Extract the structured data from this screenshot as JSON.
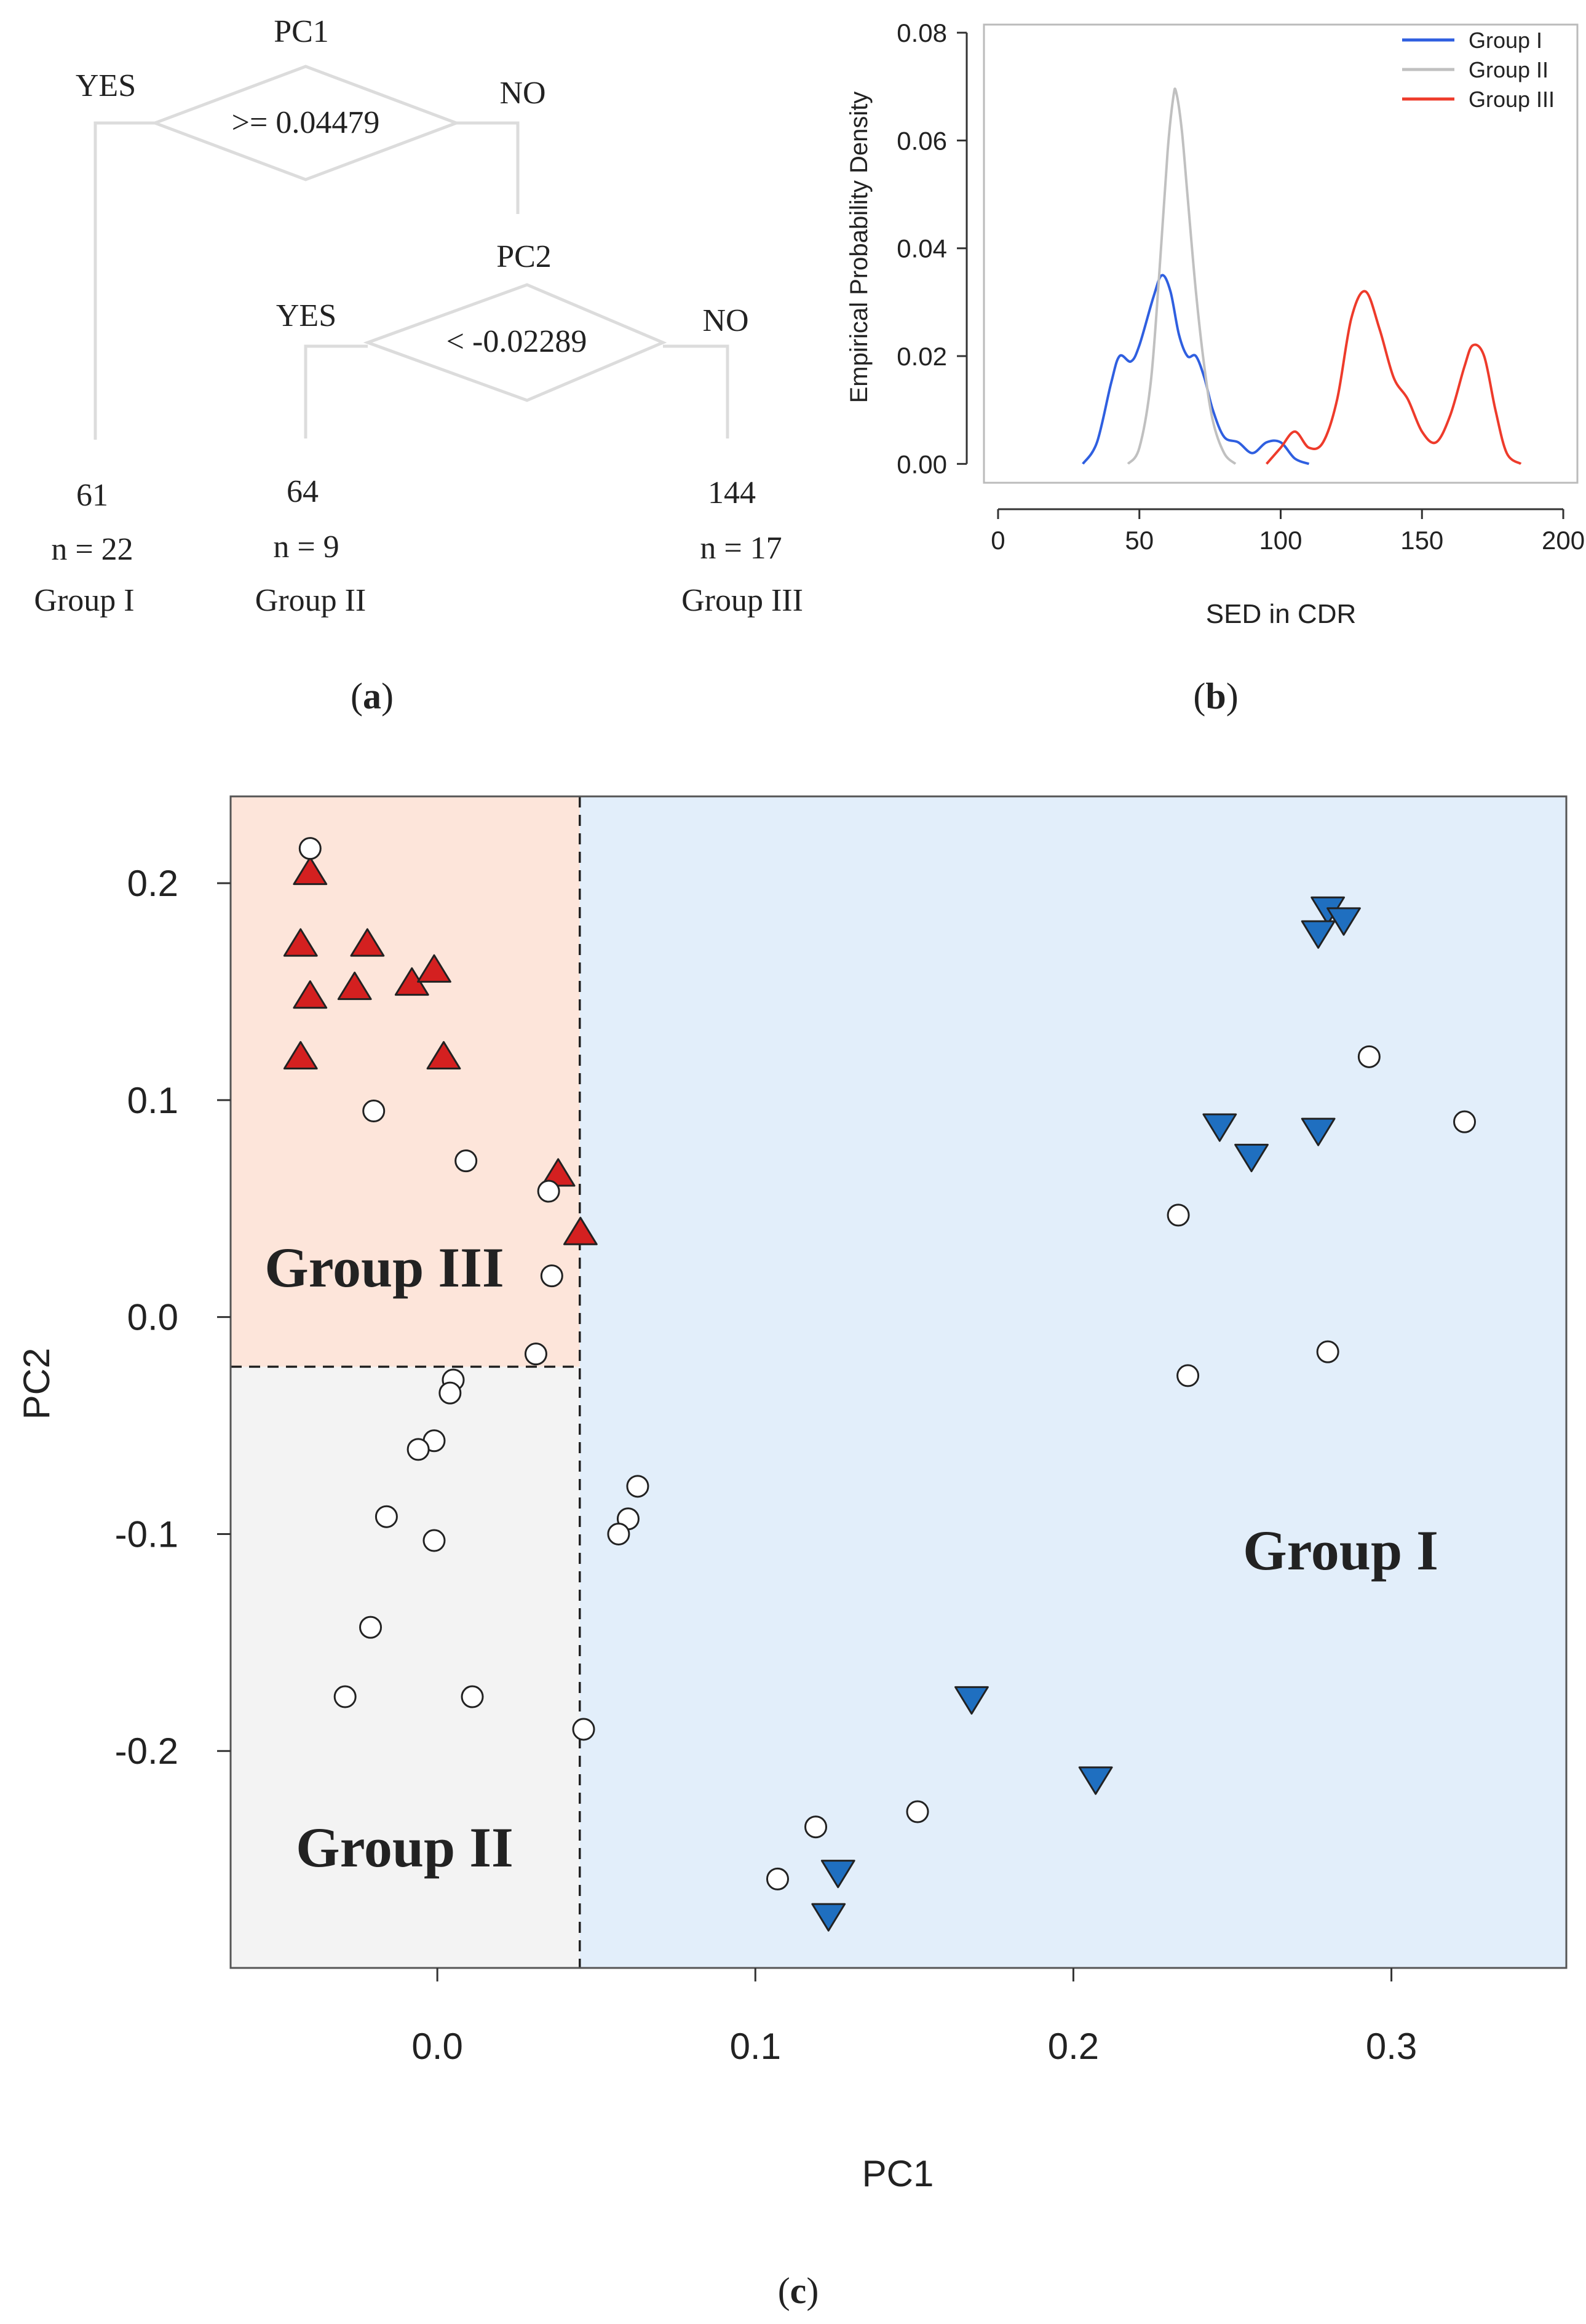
{
  "panels": {
    "a": {
      "label_open": "(",
      "label_letter": "a",
      "label_close": ")"
    },
    "b": {
      "label_open": "(",
      "label_letter": "b",
      "label_close": ")"
    },
    "c": {
      "label_open": "(",
      "label_letter": "c",
      "label_close": ")"
    }
  },
  "tree": {
    "root": {
      "variable": "PC1",
      "condition": ">= 0.04479",
      "yes": "YES",
      "no": "NO"
    },
    "child": {
      "variable": "PC2",
      "condition": "< -0.02289",
      "yes": "YES",
      "no": "NO"
    },
    "leaves": [
      {
        "value": "61",
        "n": "n = 22",
        "group": "Group I"
      },
      {
        "value": "64",
        "n": "n = 9",
        "group": "Group II"
      },
      {
        "value": "144",
        "n": "n = 17",
        "group": "Group III"
      }
    ]
  },
  "colors": {
    "group1_line": "#2f5fe0",
    "group2_line": "#c0c0c0",
    "group3_line": "#ee3b2b",
    "group3_region": "#fde5da",
    "group2_region": "#f3f3f3",
    "group1_region": "#e2eefa",
    "triangle_up_fill": "#d42020",
    "triangle_down_fill": "#1f6fc0",
    "circle_fill": "#ffffff"
  },
  "chart_data": [
    {
      "id": "density",
      "type": "line",
      "title": "",
      "xlabel": "SED in CDR",
      "ylabel": "Empirical Probability Density",
      "xlim": [
        -5,
        205
      ],
      "ylim": [
        -0.0035,
        0.0815
      ],
      "xticks": [
        0,
        50,
        100,
        150,
        200
      ],
      "yticks": [
        0.0,
        0.02,
        0.04,
        0.06,
        0.08
      ],
      "ytick_labels": [
        "0.00",
        "0.02",
        "0.04",
        "0.06",
        "0.08"
      ],
      "legend_position": "top-right",
      "series": [
        {
          "name": "Group I",
          "color_key": "group1_line",
          "x": [
            30,
            35,
            40,
            43,
            47,
            50,
            55,
            58,
            61,
            64,
            67,
            70,
            73,
            76,
            80,
            85,
            90,
            95,
            100,
            105,
            110
          ],
          "y": [
            0.0,
            0.004,
            0.015,
            0.02,
            0.019,
            0.022,
            0.031,
            0.035,
            0.032,
            0.024,
            0.02,
            0.02,
            0.016,
            0.01,
            0.005,
            0.004,
            0.002,
            0.004,
            0.004,
            0.001,
            0.0
          ]
        },
        {
          "name": "Group II",
          "color_key": "group2_line",
          "x": [
            46,
            50,
            54,
            57,
            60,
            62,
            63,
            65,
            67,
            70,
            73,
            76,
            80,
            84
          ],
          "y": [
            0.0,
            0.003,
            0.015,
            0.035,
            0.058,
            0.068,
            0.069,
            0.062,
            0.05,
            0.032,
            0.018,
            0.008,
            0.002,
            0.0
          ]
        },
        {
          "name": "Group III",
          "color_key": "group3_line",
          "x": [
            95,
            100,
            105,
            110,
            115,
            120,
            125,
            130,
            135,
            140,
            145,
            150,
            155,
            160,
            165,
            168,
            172,
            176,
            180,
            185
          ],
          "y": [
            0.0,
            0.003,
            0.006,
            0.003,
            0.004,
            0.012,
            0.027,
            0.032,
            0.025,
            0.016,
            0.012,
            0.006,
            0.004,
            0.009,
            0.018,
            0.022,
            0.02,
            0.01,
            0.002,
            0.0
          ]
        }
      ]
    },
    {
      "id": "scatter",
      "type": "scatter",
      "xlabel": "PC1",
      "ylabel": "PC2",
      "xlim": [
        -0.065,
        0.355
      ],
      "ylim": [
        -0.3,
        0.24
      ],
      "xticks": [
        0.0,
        0.1,
        0.2,
        0.3
      ],
      "xtick_labels": [
        "0.0",
        "0.1",
        "0.2",
        "0.3"
      ],
      "yticks": [
        0.2,
        0.1,
        0.0,
        -0.1,
        -0.2
      ],
      "ytick_labels": [
        "0.2",
        "0.1",
        "0.0",
        "-0.1",
        "-0.2"
      ],
      "split_x": 0.04479,
      "split_y": -0.02289,
      "region_labels": {
        "group1": "Group I",
        "group2": "Group II",
        "group3": "Group III"
      },
      "series": [
        {
          "name": "Triangle up",
          "marker": "triangle-up",
          "points": [
            [
              -0.04,
              0.205
            ],
            [
              -0.043,
              0.172
            ],
            [
              -0.022,
              0.172
            ],
            [
              -0.04,
              0.148
            ],
            [
              -0.026,
              0.152
            ],
            [
              -0.008,
              0.154
            ],
            [
              -0.001,
              0.16
            ],
            [
              -0.043,
              0.12
            ],
            [
              0.002,
              0.12
            ],
            [
              0.038,
              0.066
            ],
            [
              0.045,
              0.039
            ]
          ]
        },
        {
          "name": "Triangle down",
          "marker": "triangle-down",
          "points": [
            [
              0.28,
              0.188
            ],
            [
              0.285,
              0.183
            ],
            [
              0.277,
              0.177
            ],
            [
              0.246,
              0.088
            ],
            [
              0.256,
              0.074
            ],
            [
              0.277,
              0.086
            ],
            [
              0.168,
              -0.176
            ],
            [
              0.207,
              -0.213
            ],
            [
              0.126,
              -0.256
            ],
            [
              0.123,
              -0.276
            ]
          ]
        },
        {
          "name": "Circle",
          "marker": "circle",
          "points": [
            [
              -0.04,
              0.216
            ],
            [
              -0.02,
              0.095
            ],
            [
              0.009,
              0.072
            ],
            [
              0.035,
              0.058
            ],
            [
              0.036,
              0.019
            ],
            [
              0.031,
              -0.017
            ],
            [
              0.005,
              -0.029
            ],
            [
              0.004,
              -0.035
            ],
            [
              -0.001,
              -0.057
            ],
            [
              -0.006,
              -0.061
            ],
            [
              -0.016,
              -0.092
            ],
            [
              -0.001,
              -0.103
            ],
            [
              0.063,
              -0.078
            ],
            [
              0.06,
              -0.093
            ],
            [
              0.057,
              -0.1
            ],
            [
              -0.021,
              -0.143
            ],
            [
              -0.029,
              -0.175
            ],
            [
              0.011,
              -0.175
            ],
            [
              0.046,
              -0.19
            ],
            [
              0.293,
              0.12
            ],
            [
              0.323,
              0.09
            ],
            [
              0.233,
              0.047
            ],
            [
              0.28,
              -0.016
            ],
            [
              0.236,
              -0.027
            ],
            [
              0.119,
              -0.235
            ],
            [
              0.151,
              -0.228
            ],
            [
              0.107,
              -0.259
            ]
          ]
        }
      ]
    }
  ]
}
